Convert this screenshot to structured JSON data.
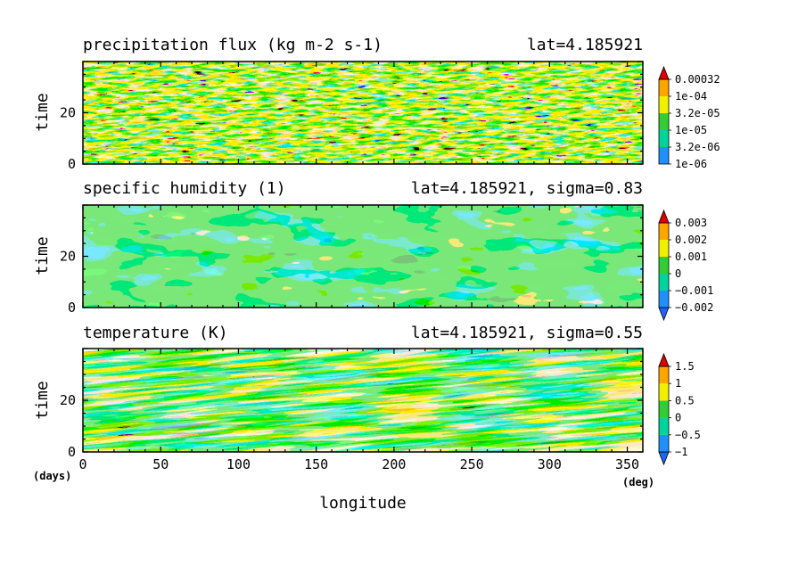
{
  "chart_data": [
    {
      "type": "heatmap",
      "title": "precipitation flux (kg m-2 s-1)",
      "annotation": "lat=4.185921",
      "xlabel": "",
      "ylabel": "time",
      "xlim": [
        0,
        360
      ],
      "ylim": [
        0,
        40
      ],
      "yticks": [
        "0",
        "20"
      ],
      "colorbar": {
        "labels": [
          "1e-06",
          "3.2e-06",
          "1e-05",
          "3.2e-05",
          "1e-04",
          "0.00032"
        ],
        "colors": [
          "#1e90ff",
          "#00d2a0",
          "#32cd32",
          "#f0f000",
          "#ffa500",
          "#e00000"
        ],
        "below_color": "#ffffff"
      }
    },
    {
      "type": "heatmap",
      "title": "specific humidity (1)",
      "annotation": "lat=4.185921, sigma=0.83",
      "xlabel": "",
      "ylabel": "time",
      "xlim": [
        0,
        360
      ],
      "ylim": [
        0,
        40
      ],
      "yticks": [
        "0",
        "20"
      ],
      "colorbar": {
        "labels": [
          "−0.002",
          "−0.001",
          "0",
          "0.001",
          "0.002",
          "0.003"
        ],
        "colors": [
          "#1e64ff",
          "#1e90ff",
          "#00d2a0",
          "#32cd32",
          "#f0f000",
          "#ffa500",
          "#e00000"
        ]
      }
    },
    {
      "type": "heatmap",
      "title": "temperature (K)",
      "annotation": "lat=4.185921, sigma=0.55",
      "xlabel": "longitude",
      "ylabel": "time",
      "xlim": [
        0,
        360
      ],
      "ylim": [
        0,
        40
      ],
      "xticks": [
        "0",
        "50",
        "100",
        "150",
        "200",
        "250",
        "300",
        "350"
      ],
      "yticks": [
        "0",
        "20"
      ],
      "x_unit": "(deg)",
      "y_unit": "(days)",
      "colorbar": {
        "labels": [
          "−1",
          "−0.5",
          "0",
          "0.5",
          "1",
          "1.5"
        ],
        "colors": [
          "#1e64ff",
          "#1e90ff",
          "#00d2a0",
          "#32cd32",
          "#f0f000",
          "#ffa500",
          "#e00000"
        ]
      }
    }
  ]
}
